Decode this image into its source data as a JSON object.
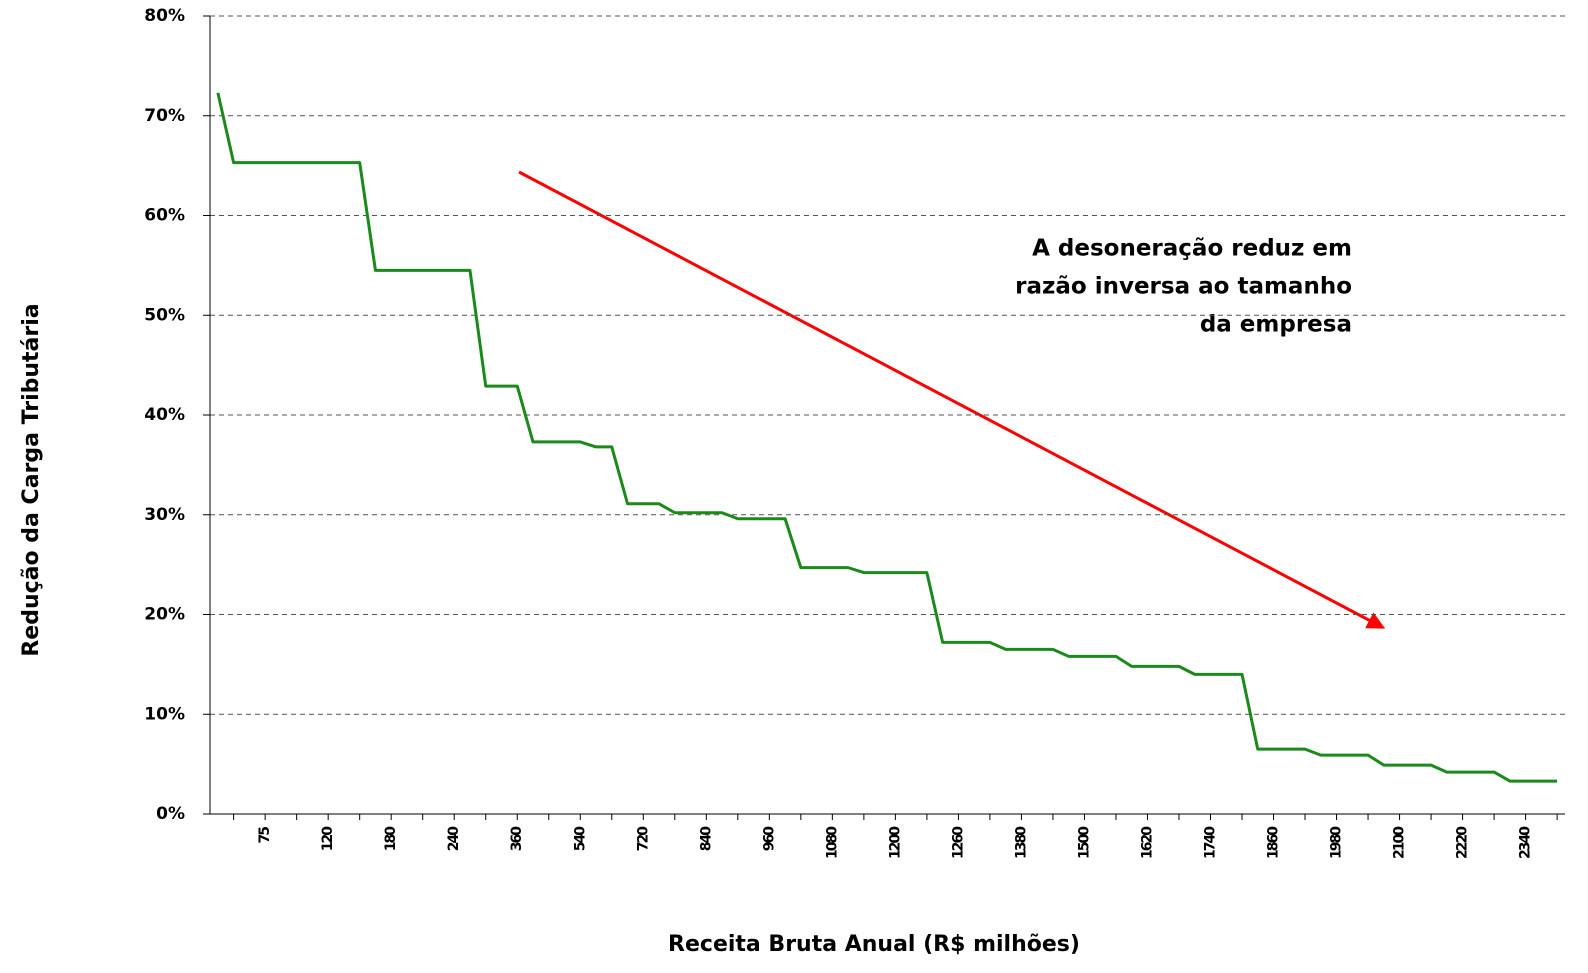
{
  "chart_data": {
    "type": "line",
    "y_axis_label": "Redução da Carga Tributária",
    "x_axis_label": "Receita Bruta Anual (R$ milhões)",
    "annotation": [
      "A desoneração reduz em",
      "razão inversa ao tamanho",
      "da empresa"
    ],
    "categories": [
      null,
      null,
      null,
      "75",
      null,
      null,
      null,
      "120",
      null,
      null,
      null,
      "180",
      null,
      null,
      null,
      "240",
      null,
      null,
      null,
      "360",
      null,
      null,
      null,
      "540",
      null,
      null,
      null,
      "720",
      null,
      null,
      null,
      "840",
      null,
      null,
      null,
      "960",
      null,
      null,
      null,
      "1080",
      null,
      null,
      null,
      "1200",
      null,
      null,
      null,
      "1260",
      null,
      null,
      null,
      "1380",
      null,
      null,
      null,
      "1500",
      null,
      null,
      null,
      "1620",
      null,
      null,
      null,
      "1740",
      null,
      null,
      null,
      "1860",
      null,
      null,
      null,
      "1980",
      null,
      null,
      null,
      "2100",
      null,
      null,
      null,
      "2220",
      null,
      null,
      null,
      "2340",
      null,
      null
    ],
    "series": [
      {
        "color": "#1a8a1a",
        "values": [
          72.3,
          65.3,
          65.3,
          65.3,
          65.3,
          65.3,
          65.3,
          65.3,
          65.3,
          65.3,
          54.5,
          54.5,
          54.5,
          54.5,
          54.5,
          54.5,
          54.5,
          42.9,
          42.9,
          42.9,
          37.3,
          37.3,
          37.3,
          37.3,
          36.8,
          36.8,
          31.1,
          31.1,
          31.1,
          30.2,
          30.2,
          30.2,
          30.2,
          29.6,
          29.6,
          29.6,
          29.6,
          24.7,
          24.7,
          24.7,
          24.7,
          24.2,
          24.2,
          24.2,
          24.2,
          24.2,
          17.2,
          17.2,
          17.2,
          17.2,
          16.5,
          16.5,
          16.5,
          16.5,
          15.8,
          15.8,
          15.8,
          15.8,
          14.8,
          14.8,
          14.8,
          14.8,
          14,
          14,
          14,
          14,
          6.5,
          6.5,
          6.5,
          6.5,
          5.9,
          5.9,
          5.9,
          5.9,
          4.9,
          4.9,
          4.9,
          4.9,
          4.2,
          4.2,
          4.2,
          4.2,
          3.3,
          3.3,
          3.3,
          3.3
        ]
      }
    ],
    "ylim": [
      0,
      80
    ],
    "yticks": [
      {
        "value": 0,
        "label": "0%"
      },
      {
        "value": 10,
        "label": "10%"
      },
      {
        "value": 20,
        "label": "20%"
      },
      {
        "value": 30,
        "label": "30%"
      },
      {
        "value": 40,
        "label": "40%"
      },
      {
        "value": 50,
        "label": "50%"
      },
      {
        "value": 60,
        "label": "60%"
      },
      {
        "value": 70,
        "label": "70%"
      },
      {
        "value": 80,
        "label": "80%"
      }
    ],
    "grid": true
  }
}
